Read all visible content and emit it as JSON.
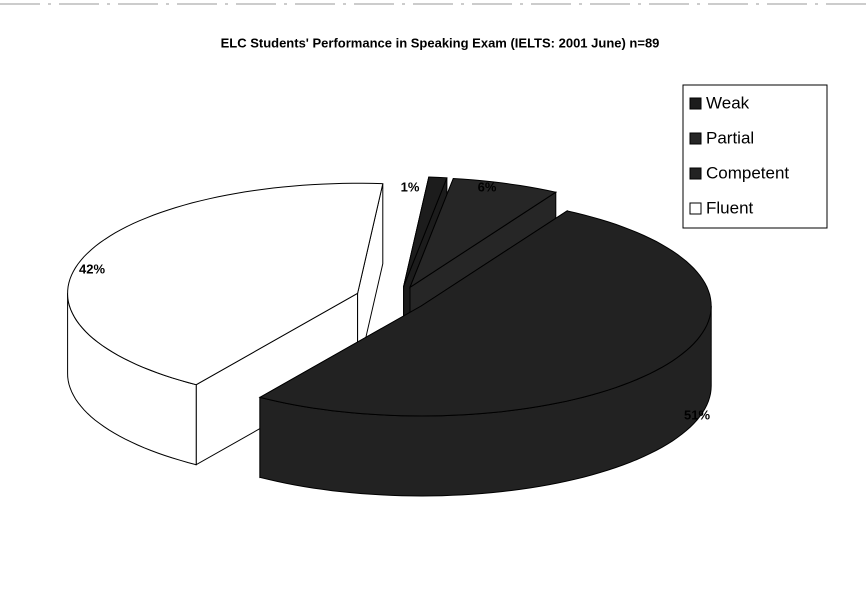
{
  "chart_data": {
    "type": "pie",
    "title": "ELC Students' Performance in Speaking Exam (IELTS: 2001 June) n=89",
    "categories": [
      "Weak",
      "Partial",
      "Competent",
      "Fluent"
    ],
    "values": [
      1,
      6,
      51,
      42
    ],
    "value_labels": [
      "1%",
      "6%",
      "51%",
      "42%"
    ],
    "colors": [
      "#1c1c1c",
      "#262626",
      "#222222",
      "#ffffff"
    ],
    "legend": "top-right"
  }
}
